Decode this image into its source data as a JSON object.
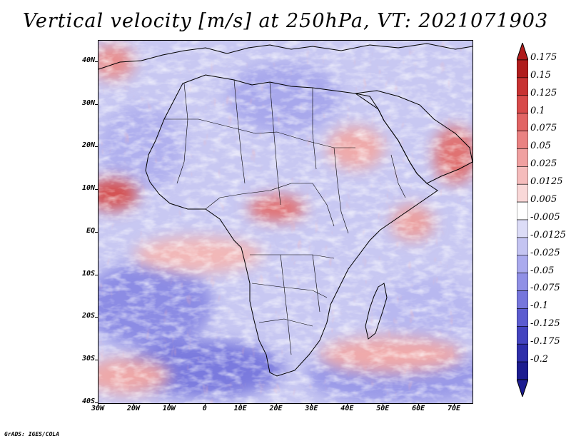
{
  "title": "Vertical velocity [m/s] at 250hPa, VT: 2021071903",
  "footer": "GrADS: IGES/COLA",
  "map": {
    "lon_range": [
      -30,
      75
    ],
    "lat_range": [
      -40,
      45
    ],
    "lat_labels": [
      "40N",
      "30N",
      "20N",
      "10N",
      "EQ",
      "10S",
      "20S",
      "30S",
      "40S"
    ],
    "lat_values": [
      40,
      30,
      20,
      10,
      0,
      -10,
      -20,
      -30,
      -40
    ],
    "lon_labels": [
      "30W",
      "20W",
      "10W",
      "0",
      "10E",
      "20E",
      "30E",
      "40E",
      "50E",
      "60E",
      "70E"
    ],
    "lon_values": [
      -30,
      -20,
      -10,
      0,
      10,
      20,
      30,
      40,
      50,
      60,
      70
    ]
  },
  "legend": {
    "labels": [
      "0.175",
      "0.15",
      "0.125",
      "0.1",
      "0.075",
      "0.05",
      "0.025",
      "0.0125",
      "0.005",
      "-0.005",
      "-0.0125",
      "-0.025",
      "-0.05",
      "-0.075",
      "-0.1",
      "-0.125",
      "-0.175",
      "-0.2"
    ],
    "colors": [
      "#b01c1c",
      "#c83232",
      "#d84a4a",
      "#e26464",
      "#ea8282",
      "#f0a0a0",
      "#f5bcbc",
      "#f9d8d8",
      "#ffffff",
      "#dcdcf7",
      "#c4c4f2",
      "#aaaaee",
      "#9090e6",
      "#7676dc",
      "#5c5cd0",
      "#4444c0",
      "#2e2eaa",
      "#1c1c90"
    ]
  }
}
